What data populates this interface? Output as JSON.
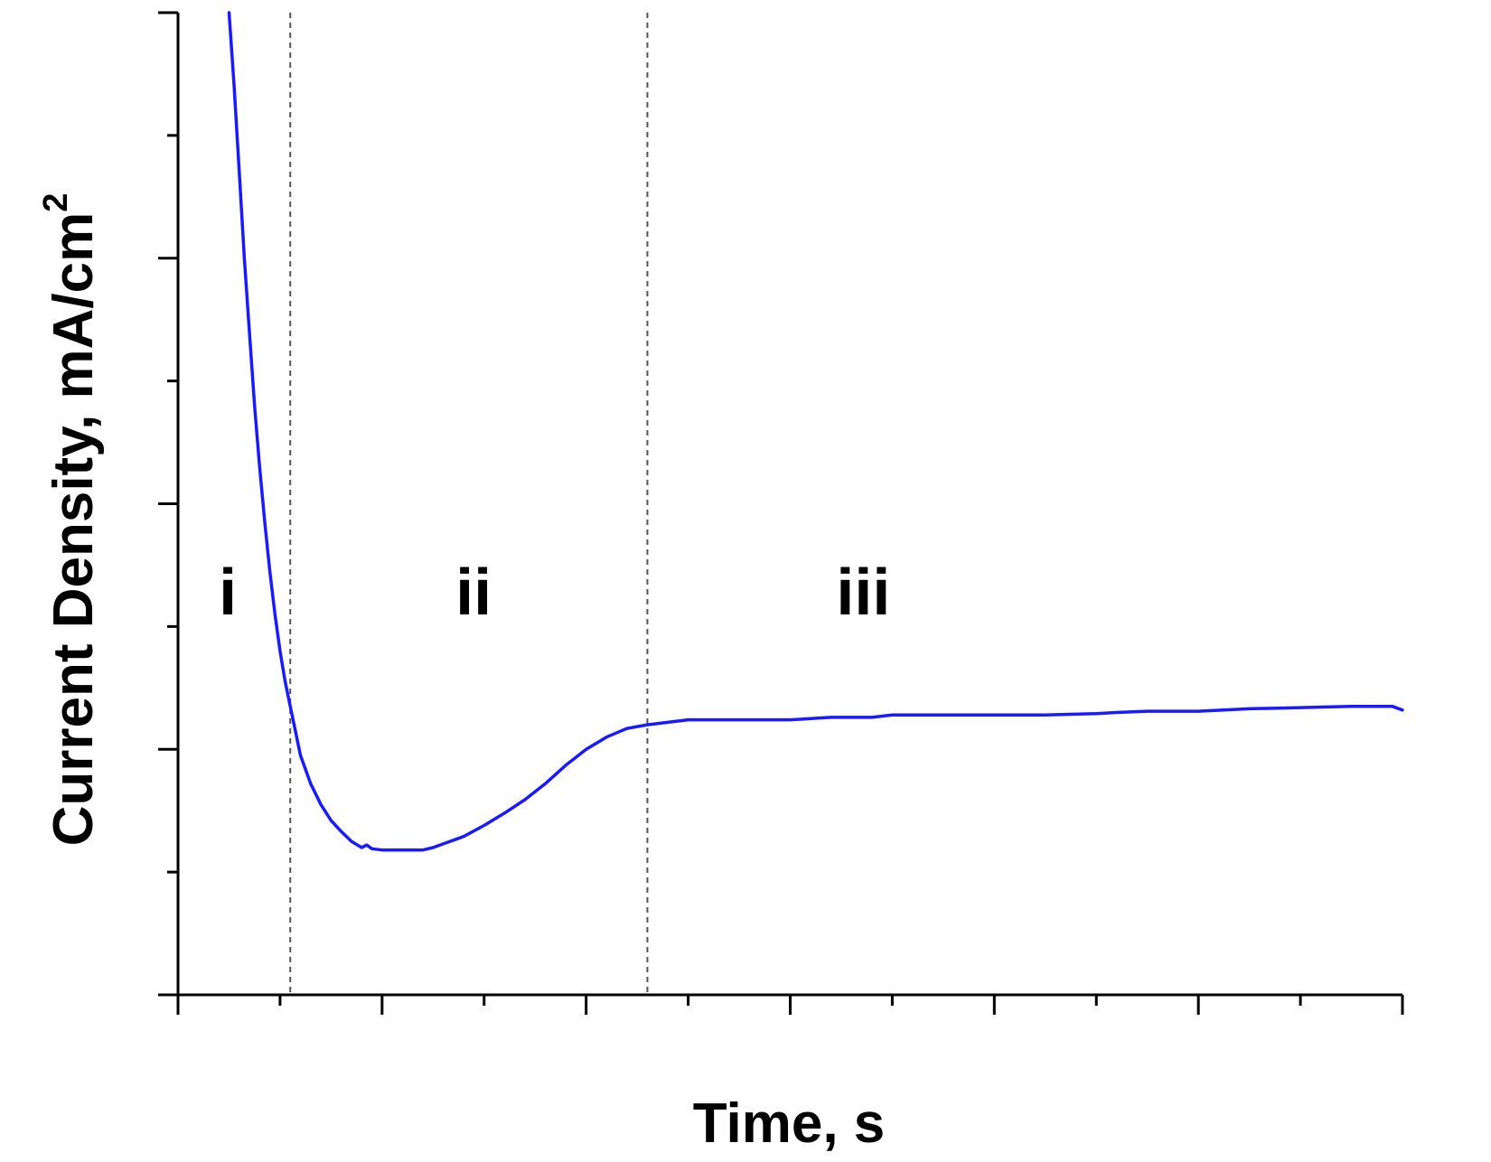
{
  "chart_data": {
    "type": "line",
    "title": "",
    "xlabel": "Time, s",
    "ylabel": "Current Density, mA/cm",
    "ylabel_superscript": "2",
    "xlim": [
      0,
      12
    ],
    "ylim": [
      0,
      8
    ],
    "x_major_ticks": [
      0,
      2,
      4,
      6,
      8,
      10,
      12
    ],
    "x_minor_ticks": [
      1,
      3,
      5,
      7,
      9,
      11
    ],
    "y_major_ticks": [
      0,
      2,
      4,
      6,
      8
    ],
    "y_minor_ticks": [
      1,
      3,
      5,
      7
    ],
    "tick_labels_shown": false,
    "grid": false,
    "line_color": "#1a1aff",
    "divider_color": "#555555",
    "dividers": [
      {
        "x": 1.1,
        "style": "dashed"
      },
      {
        "x": 4.6,
        "style": "dashed"
      }
    ],
    "regions": [
      {
        "label": "i",
        "x": 0.4,
        "y": 3.1
      },
      {
        "label": "ii",
        "x": 2.72,
        "y": 3.1
      },
      {
        "label": "iii",
        "x": 6.45,
        "y": 3.1
      }
    ],
    "series": [
      {
        "x": [
          0.5,
          0.55,
          0.6,
          0.65,
          0.7,
          0.75,
          0.8,
          0.85,
          0.9,
          0.95,
          1.0,
          1.05,
          1.1,
          1.15,
          1.2,
          1.3,
          1.4,
          1.5,
          1.6,
          1.7,
          1.8,
          1.85,
          1.9,
          2.0,
          2.1,
          2.2,
          2.3,
          2.4,
          2.5,
          2.6,
          2.8,
          3.0,
          3.2,
          3.4,
          3.6,
          3.8,
          4.0,
          4.2,
          4.4,
          4.6,
          4.8,
          5.0,
          5.5,
          6.0,
          6.2,
          6.4,
          6.8,
          7.0,
          7.5,
          8.0,
          8.5,
          9.0,
          9.2,
          9.5,
          10.0,
          10.5,
          11.0,
          11.5,
          11.9,
          12.0
        ],
        "y": [
          8.0,
          7.4,
          6.7,
          6.0,
          5.4,
          4.8,
          4.3,
          3.85,
          3.45,
          3.1,
          2.8,
          2.55,
          2.35,
          2.15,
          1.95,
          1.72,
          1.55,
          1.42,
          1.33,
          1.25,
          1.2,
          1.22,
          1.19,
          1.18,
          1.18,
          1.18,
          1.18,
          1.18,
          1.2,
          1.23,
          1.29,
          1.38,
          1.48,
          1.59,
          1.72,
          1.87,
          2.0,
          2.1,
          2.17,
          2.2,
          2.22,
          2.24,
          2.24,
          2.24,
          2.25,
          2.26,
          2.26,
          2.28,
          2.28,
          2.28,
          2.28,
          2.29,
          2.3,
          2.31,
          2.31,
          2.33,
          2.34,
          2.35,
          2.35,
          2.32
        ]
      }
    ]
  }
}
